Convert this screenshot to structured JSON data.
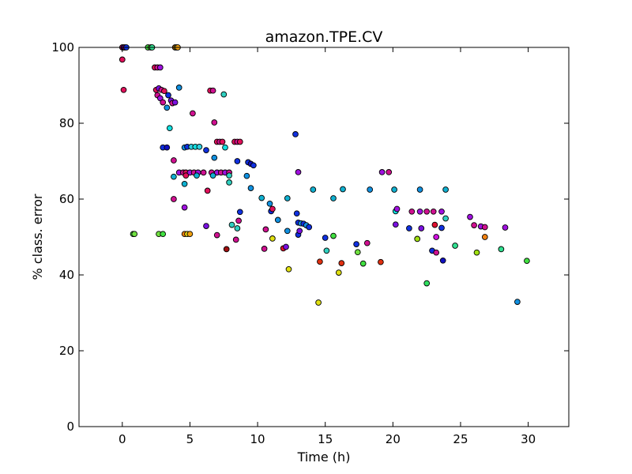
{
  "chart_data": {
    "type": "scatter",
    "title": "amazon.TPE.CV",
    "xlabel": "Time (h)",
    "ylabel": "% class. error",
    "xlim": [
      -3.2,
      33
    ],
    "ylim": [
      0,
      100
    ],
    "xticks": [
      "0",
      "5",
      "10",
      "15",
      "20",
      "25",
      "30"
    ],
    "yticks": [
      "0",
      "20",
      "40",
      "60",
      "80",
      "100"
    ],
    "grid": false,
    "points": [
      {
        "x": 0.0,
        "y": 100.0,
        "color": "#e0105a"
      },
      {
        "x": 0.1,
        "y": 100.0,
        "color": "#7a10e0"
      },
      {
        "x": 0.2,
        "y": 100.0,
        "color": "#d01090"
      },
      {
        "x": 0.3,
        "y": 100.0,
        "color": "#1030e0"
      },
      {
        "x": 0.0,
        "y": 96.8,
        "color": "#e0105a"
      },
      {
        "x": 0.1,
        "y": 88.8,
        "color": "#e0105a"
      },
      {
        "x": 0.8,
        "y": 50.8,
        "color": "#40e040"
      },
      {
        "x": 0.9,
        "y": 50.8,
        "color": "#70e040"
      },
      {
        "x": 1.9,
        "y": 100.0,
        "color": "#40e040"
      },
      {
        "x": 2.1,
        "y": 100.0,
        "color": "#70e040"
      },
      {
        "x": 2.2,
        "y": 100.0,
        "color": "#30e090"
      },
      {
        "x": 2.4,
        "y": 94.7,
        "color": "#e0105a"
      },
      {
        "x": 2.6,
        "y": 94.7,
        "color": "#d01090"
      },
      {
        "x": 2.8,
        "y": 94.7,
        "color": "#a010e0"
      },
      {
        "x": 2.5,
        "y": 88.8,
        "color": "#e0105a"
      },
      {
        "x": 2.7,
        "y": 89.2,
        "color": "#7a10e0"
      },
      {
        "x": 2.9,
        "y": 88.8,
        "color": "#d01090"
      },
      {
        "x": 3.1,
        "y": 88.5,
        "color": "#e0105a"
      },
      {
        "x": 2.6,
        "y": 87.4,
        "color": "#d01090"
      },
      {
        "x": 2.8,
        "y": 86.6,
        "color": "#a010e0"
      },
      {
        "x": 3.0,
        "y": 85.5,
        "color": "#d01090"
      },
      {
        "x": 3.3,
        "y": 84.1,
        "color": "#1090e0"
      },
      {
        "x": 3.4,
        "y": 87.4,
        "color": "#1030e0"
      },
      {
        "x": 3.6,
        "y": 86.0,
        "color": "#7a10e0"
      },
      {
        "x": 3.7,
        "y": 85.3,
        "color": "#d01090"
      },
      {
        "x": 3.9,
        "y": 85.5,
        "color": "#7a10e0"
      },
      {
        "x": 4.2,
        "y": 89.4,
        "color": "#1090e0"
      },
      {
        "x": 3.5,
        "y": 78.7,
        "color": "#10e0e0"
      },
      {
        "x": 3.0,
        "y": 73.6,
        "color": "#1030e0"
      },
      {
        "x": 3.3,
        "y": 73.6,
        "color": "#1010c0"
      },
      {
        "x": 3.8,
        "y": 70.2,
        "color": "#d01090"
      },
      {
        "x": 3.8,
        "y": 65.9,
        "color": "#10b0d0"
      },
      {
        "x": 4.2,
        "y": 67.0,
        "color": "#a010e0"
      },
      {
        "x": 4.5,
        "y": 67.0,
        "color": "#d01090"
      },
      {
        "x": 4.7,
        "y": 67.0,
        "color": "#e0105a"
      },
      {
        "x": 5.0,
        "y": 67.0,
        "color": "#a010e0"
      },
      {
        "x": 5.3,
        "y": 67.0,
        "color": "#d01090"
      },
      {
        "x": 5.6,
        "y": 67.0,
        "color": "#a010e0"
      },
      {
        "x": 6.0,
        "y": 67.0,
        "color": "#d01090"
      },
      {
        "x": 4.7,
        "y": 66.2,
        "color": "#e0105a"
      },
      {
        "x": 5.5,
        "y": 66.2,
        "color": "#10b0d0"
      },
      {
        "x": 4.6,
        "y": 64.0,
        "color": "#10b0d0"
      },
      {
        "x": 3.8,
        "y": 60.0,
        "color": "#d01090"
      },
      {
        "x": 4.6,
        "y": 57.8,
        "color": "#a010e0"
      },
      {
        "x": 3.9,
        "y": 100.0,
        "color": "#f08010"
      },
      {
        "x": 4.0,
        "y": 100.0,
        "color": "#e0d010"
      },
      {
        "x": 4.1,
        "y": 100.0,
        "color": "#f0a010"
      },
      {
        "x": 2.7,
        "y": 50.8,
        "color": "#70e040"
      },
      {
        "x": 3.0,
        "y": 50.8,
        "color": "#40e040"
      },
      {
        "x": 4.6,
        "y": 50.8,
        "color": "#f08010"
      },
      {
        "x": 4.8,
        "y": 50.8,
        "color": "#e0d010"
      },
      {
        "x": 5.0,
        "y": 50.8,
        "color": "#f0a010"
      },
      {
        "x": 4.6,
        "y": 73.6,
        "color": "#1090e0"
      },
      {
        "x": 4.8,
        "y": 73.8,
        "color": "#1030e0"
      },
      {
        "x": 5.1,
        "y": 73.8,
        "color": "#30d0e0"
      },
      {
        "x": 5.4,
        "y": 73.8,
        "color": "#10e0e0"
      },
      {
        "x": 5.7,
        "y": 73.8,
        "color": "#30d0e0"
      },
      {
        "x": 5.2,
        "y": 82.6,
        "color": "#d01090"
      },
      {
        "x": 6.2,
        "y": 72.9,
        "color": "#1030e0"
      },
      {
        "x": 6.5,
        "y": 88.6,
        "color": "#e0105a"
      },
      {
        "x": 6.7,
        "y": 88.6,
        "color": "#d01090"
      },
      {
        "x": 7.5,
        "y": 87.6,
        "color": "#30d0c0"
      },
      {
        "x": 6.8,
        "y": 80.2,
        "color": "#d01090"
      },
      {
        "x": 7.0,
        "y": 75.1,
        "color": "#e0105a"
      },
      {
        "x": 7.2,
        "y": 75.1,
        "color": "#d01090"
      },
      {
        "x": 7.4,
        "y": 75.1,
        "color": "#e0105a"
      },
      {
        "x": 7.6,
        "y": 73.6,
        "color": "#10e0e0"
      },
      {
        "x": 6.8,
        "y": 70.9,
        "color": "#1090e0"
      },
      {
        "x": 6.6,
        "y": 67.0,
        "color": "#d01090"
      },
      {
        "x": 7.0,
        "y": 67.0,
        "color": "#a010e0"
      },
      {
        "x": 7.3,
        "y": 67.0,
        "color": "#d01090"
      },
      {
        "x": 7.6,
        "y": 67.0,
        "color": "#a010e0"
      },
      {
        "x": 7.9,
        "y": 67.0,
        "color": "#d01090"
      },
      {
        "x": 6.7,
        "y": 66.2,
        "color": "#10b0d0"
      },
      {
        "x": 7.9,
        "y": 66.2,
        "color": "#30d0c0"
      },
      {
        "x": 6.3,
        "y": 62.2,
        "color": "#e0105a"
      },
      {
        "x": 7.9,
        "y": 64.4,
        "color": "#30d0c0"
      },
      {
        "x": 8.3,
        "y": 75.1,
        "color": "#e0105a"
      },
      {
        "x": 8.5,
        "y": 75.1,
        "color": "#d01090"
      },
      {
        "x": 8.7,
        "y": 75.1,
        "color": "#e0105a"
      },
      {
        "x": 8.5,
        "y": 70.0,
        "color": "#1030e0"
      },
      {
        "x": 6.2,
        "y": 52.9,
        "color": "#7a10e0"
      },
      {
        "x": 7.0,
        "y": 50.5,
        "color": "#d01090"
      },
      {
        "x": 7.7,
        "y": 46.8,
        "color": "#a01010"
      },
      {
        "x": 8.1,
        "y": 53.2,
        "color": "#30d0c0"
      },
      {
        "x": 8.5,
        "y": 52.3,
        "color": "#30d0c0"
      },
      {
        "x": 8.6,
        "y": 54.3,
        "color": "#d01090"
      },
      {
        "x": 8.7,
        "y": 56.6,
        "color": "#1030e0"
      },
      {
        "x": 8.4,
        "y": 49.3,
        "color": "#d01090"
      },
      {
        "x": 9.2,
        "y": 66.1,
        "color": "#1090e0"
      },
      {
        "x": 9.3,
        "y": 69.7,
        "color": "#1030e0"
      },
      {
        "x": 9.5,
        "y": 69.3,
        "color": "#1010c0"
      },
      {
        "x": 9.7,
        "y": 68.9,
        "color": "#1030e0"
      },
      {
        "x": 9.5,
        "y": 62.9,
        "color": "#1090e0"
      },
      {
        "x": 10.3,
        "y": 60.3,
        "color": "#10b0d0"
      },
      {
        "x": 10.9,
        "y": 58.8,
        "color": "#1090e0"
      },
      {
        "x": 11.0,
        "y": 56.8,
        "color": "#1030e0"
      },
      {
        "x": 11.1,
        "y": 57.4,
        "color": "#e0105a"
      },
      {
        "x": 10.6,
        "y": 52.0,
        "color": "#d01090"
      },
      {
        "x": 11.5,
        "y": 54.5,
        "color": "#1090e0"
      },
      {
        "x": 11.1,
        "y": 49.6,
        "color": "#e0e010"
      },
      {
        "x": 10.5,
        "y": 46.9,
        "color": "#d01090"
      },
      {
        "x": 11.9,
        "y": 47.0,
        "color": "#e01030"
      },
      {
        "x": 12.1,
        "y": 47.4,
        "color": "#7a10e0"
      },
      {
        "x": 12.2,
        "y": 51.6,
        "color": "#1090e0"
      },
      {
        "x": 12.2,
        "y": 60.2,
        "color": "#10b0d0"
      },
      {
        "x": 12.3,
        "y": 41.5,
        "color": "#e0e010"
      },
      {
        "x": 12.8,
        "y": 77.1,
        "color": "#1030e0"
      },
      {
        "x": 13.0,
        "y": 67.1,
        "color": "#a010e0"
      },
      {
        "x": 12.9,
        "y": 56.2,
        "color": "#1030e0"
      },
      {
        "x": 13.0,
        "y": 53.8,
        "color": "#1030e0"
      },
      {
        "x": 13.2,
        "y": 53.6,
        "color": "#1090e0"
      },
      {
        "x": 13.4,
        "y": 53.5,
        "color": "#1030e0"
      },
      {
        "x": 13.6,
        "y": 53.1,
        "color": "#1090e0"
      },
      {
        "x": 13.8,
        "y": 52.6,
        "color": "#1030e0"
      },
      {
        "x": 13.0,
        "y": 50.6,
        "color": "#1030e0"
      },
      {
        "x": 13.1,
        "y": 51.6,
        "color": "#7a10e0"
      },
      {
        "x": 14.1,
        "y": 62.5,
        "color": "#10b0d0"
      },
      {
        "x": 14.6,
        "y": 43.5,
        "color": "#e03010"
      },
      {
        "x": 14.5,
        "y": 32.7,
        "color": "#e0e010"
      },
      {
        "x": 15.0,
        "y": 49.8,
        "color": "#1030e0"
      },
      {
        "x": 15.1,
        "y": 46.4,
        "color": "#30d0c0"
      },
      {
        "x": 15.6,
        "y": 50.3,
        "color": "#40e040"
      },
      {
        "x": 15.6,
        "y": 60.2,
        "color": "#10b0d0"
      },
      {
        "x": 16.0,
        "y": 40.6,
        "color": "#e0e010"
      },
      {
        "x": 16.2,
        "y": 43.1,
        "color": "#e03010"
      },
      {
        "x": 16.3,
        "y": 62.6,
        "color": "#10b0d0"
      },
      {
        "x": 17.3,
        "y": 48.1,
        "color": "#1030e0"
      },
      {
        "x": 17.4,
        "y": 46.0,
        "color": "#70e040"
      },
      {
        "x": 17.8,
        "y": 43.0,
        "color": "#40e040"
      },
      {
        "x": 18.1,
        "y": 48.4,
        "color": "#d01090"
      },
      {
        "x": 18.3,
        "y": 62.5,
        "color": "#1090e0"
      },
      {
        "x": 19.1,
        "y": 43.4,
        "color": "#e03010"
      },
      {
        "x": 19.2,
        "y": 67.1,
        "color": "#a010e0"
      },
      {
        "x": 19.7,
        "y": 67.1,
        "color": "#d01090"
      },
      {
        "x": 20.1,
        "y": 62.5,
        "color": "#10b0d0"
      },
      {
        "x": 20.2,
        "y": 56.8,
        "color": "#10e0e0"
      },
      {
        "x": 20.3,
        "y": 57.4,
        "color": "#a010e0"
      },
      {
        "x": 20.2,
        "y": 53.3,
        "color": "#7a10e0"
      },
      {
        "x": 21.2,
        "y": 52.3,
        "color": "#1030e0"
      },
      {
        "x": 21.4,
        "y": 56.7,
        "color": "#d01090"
      },
      {
        "x": 21.8,
        "y": 49.5,
        "color": "#a0e010"
      },
      {
        "x": 22.0,
        "y": 62.5,
        "color": "#1090e0"
      },
      {
        "x": 22.0,
        "y": 56.7,
        "color": "#a010e0"
      },
      {
        "x": 22.1,
        "y": 52.3,
        "color": "#7a10e0"
      },
      {
        "x": 22.5,
        "y": 56.7,
        "color": "#d01090"
      },
      {
        "x": 22.5,
        "y": 37.8,
        "color": "#30e060"
      },
      {
        "x": 22.9,
        "y": 46.4,
        "color": "#1030e0"
      },
      {
        "x": 23.0,
        "y": 56.7,
        "color": "#d01090"
      },
      {
        "x": 23.1,
        "y": 53.2,
        "color": "#e01030"
      },
      {
        "x": 23.2,
        "y": 45.9,
        "color": "#d01090"
      },
      {
        "x": 23.2,
        "y": 50.0,
        "color": "#d010e0"
      },
      {
        "x": 23.6,
        "y": 56.7,
        "color": "#a010e0"
      },
      {
        "x": 23.6,
        "y": 52.4,
        "color": "#1030e0"
      },
      {
        "x": 23.7,
        "y": 43.8,
        "color": "#1010c0"
      },
      {
        "x": 23.9,
        "y": 62.5,
        "color": "#10b0d0"
      },
      {
        "x": 23.9,
        "y": 54.9,
        "color": "#30d0c0"
      },
      {
        "x": 24.6,
        "y": 47.7,
        "color": "#30e090"
      },
      {
        "x": 25.7,
        "y": 55.3,
        "color": "#a010e0"
      },
      {
        "x": 26.0,
        "y": 53.1,
        "color": "#d01090"
      },
      {
        "x": 26.2,
        "y": 45.9,
        "color": "#a0e010"
      },
      {
        "x": 26.5,
        "y": 52.8,
        "color": "#a010e0"
      },
      {
        "x": 26.8,
        "y": 52.6,
        "color": "#d01090"
      },
      {
        "x": 26.8,
        "y": 50.0,
        "color": "#f08010"
      },
      {
        "x": 28.0,
        "y": 46.8,
        "color": "#30e090"
      },
      {
        "x": 28.3,
        "y": 52.5,
        "color": "#a010e0"
      },
      {
        "x": 29.2,
        "y": 32.9,
        "color": "#1090e0"
      },
      {
        "x": 29.9,
        "y": 43.7,
        "color": "#40e040"
      }
    ]
  }
}
